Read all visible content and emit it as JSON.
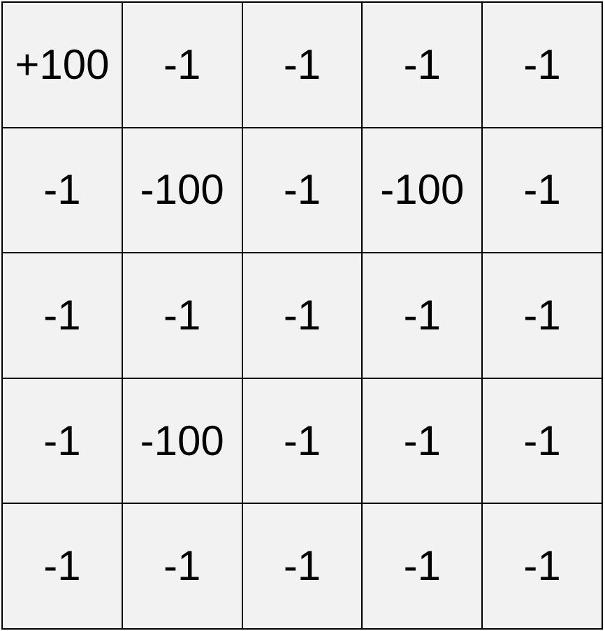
{
  "grid": {
    "rows": [
      [
        "+100",
        "-1",
        "-1",
        "-1",
        "-1"
      ],
      [
        "-1",
        "-100",
        "-1",
        "-100",
        "-1"
      ],
      [
        "-1",
        "-1",
        "-1",
        "-1",
        "-1"
      ],
      [
        "-1",
        "-100",
        "-1",
        "-1",
        "-1"
      ],
      [
        "-1",
        "-1",
        "-1",
        "-1",
        "-1"
      ]
    ]
  }
}
